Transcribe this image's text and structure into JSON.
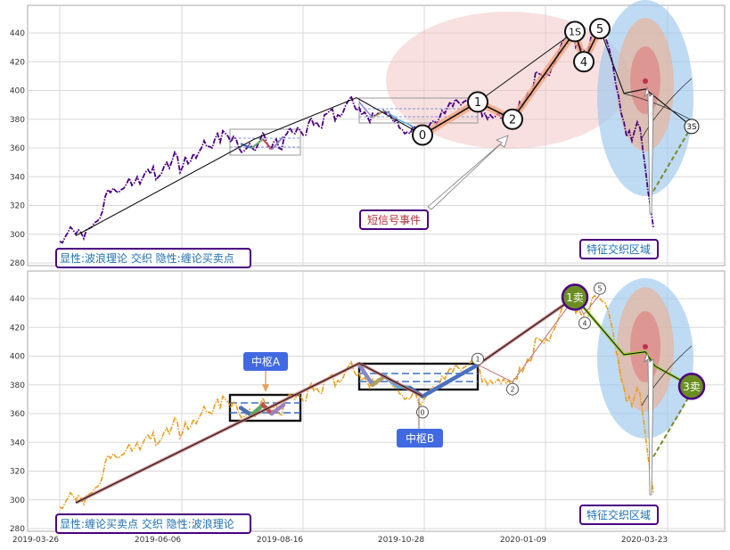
{
  "chart_data": [
    {
      "type": "line",
      "panel": "top",
      "ylim": [
        280,
        455
      ],
      "y_ticks": [
        280,
        300,
        320,
        340,
        360,
        380,
        400,
        420,
        440
      ],
      "x_tick_labels": [
        "2019-03-26",
        "2019-06-06",
        "2019-08-16",
        "2019-10-28",
        "2020-01-09",
        "2020-03-23"
      ],
      "price_series_color": "#4b0082",
      "wave_labels": [
        "0",
        "1",
        "2",
        "1S",
        "4",
        "5",
        "3S"
      ],
      "small_pivots": [
        {
          "label": "",
          "x": "2019-08-05",
          "y": 366
        },
        {
          "label": "",
          "x": "2019-08-13",
          "y": 358
        },
        {
          "label": "",
          "x": "2019-08-22",
          "y": 370
        }
      ],
      "panel_label": "显性:波浪理论 交织 隐性:缠论买卖点",
      "event_label": "短信号事件",
      "zone_label": "特征交织区域"
    },
    {
      "type": "line",
      "panel": "bottom",
      "ylim": [
        280,
        455
      ],
      "y_ticks": [
        280,
        300,
        320,
        340,
        360,
        380,
        400,
        420,
        440
      ],
      "x_tick_labels": [
        "2019-03-26",
        "2019-06-06",
        "2019-08-16",
        "2019-10-28",
        "2020-01-09",
        "2020-03-23"
      ],
      "price_series_color": "#e8a020",
      "small_labels": [
        "0",
        "1",
        "2",
        "4",
        "5"
      ],
      "sell_labels": [
        "1卖",
        "3卖"
      ],
      "hub_a_label": "中枢A",
      "hub_b_label": "中枢B",
      "panel_label": "显性:缠论买卖点 交织 隐性:波浪理论",
      "zone_label": "特征交织区域"
    }
  ],
  "colors": {
    "accent_blue": "#4169e1",
    "label_border": "#4b0082",
    "label_text": "#1e6fb0",
    "sell_circle": "#6b8e23",
    "ellipse_pink": "#f4c2c2",
    "ellipse_blue": "#9dc8ee"
  }
}
